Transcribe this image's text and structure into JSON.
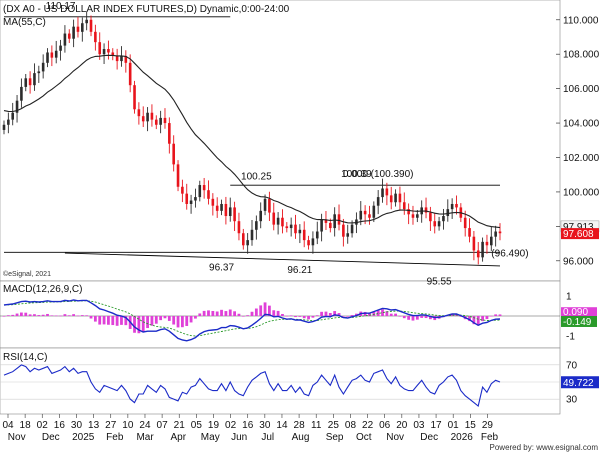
{
  "chart_data": {
    "type": "candlestick",
    "title": "(DX A0 - US DOLLAR INDEX FUTURES,D) Dynamic,0:00-24:00",
    "ma_label": "MA(55,C)",
    "watermark_top": "©eSignal, 2021",
    "footer": "Powered by: www.esignal.com",
    "price_panel": {
      "ylim": [
        95.0,
        110.8
      ],
      "yticks": [
        "110.000",
        "108.000",
        "106.000",
        "104.000",
        "102.000",
        "100.000",
        "98.000",
        "96.000"
      ],
      "tick_values": [
        110,
        108,
        106,
        104,
        102,
        100,
        98,
        96
      ],
      "last_price_label": "97.608",
      "last_price": 97.608,
      "last_ma_label": "97.913",
      "last_ma": 97.913,
      "annotations": [
        {
          "text": "110.17",
          "date_index": 13,
          "value": 110.17,
          "pos": "above"
        },
        {
          "text": "100.25",
          "date_index": 58,
          "value": 100.25,
          "pos": "above"
        },
        {
          "text": "100.39",
          "date_index": 81,
          "value": 100.39,
          "pos": "above"
        },
        {
          "text": "0.000 (100.390)",
          "date_index": 86,
          "value": 100.39,
          "pos": "above"
        },
        {
          "text": "96.37",
          "date_index": 50,
          "value": 96.37,
          "pos": "below"
        },
        {
          "text": "96.21",
          "date_index": 68,
          "value": 96.21,
          "pos": "below"
        },
        {
          "text": "95.55",
          "date_index": 100,
          "value": 95.55,
          "pos": "below"
        },
        {
          "text": "(96.490)",
          "date_index": 112,
          "value": 96.49,
          "pos": "inline"
        }
      ],
      "lines": [
        {
          "name": "top-resistance",
          "from": [
            0,
            110.17
          ],
          "to": [
            52,
            110.17
          ]
        },
        {
          "name": "range-top",
          "from": [
            52,
            100.39
          ],
          "to": [
            114,
            100.39
          ]
        },
        {
          "name": "support-line",
          "from": [
            14,
            96.45
          ],
          "to": [
            114,
            95.7
          ]
        },
        {
          "name": "fib-line",
          "from": [
            0,
            96.49
          ],
          "to": [
            114,
            96.49
          ]
        }
      ]
    },
    "macd_panel": {
      "label": "MACD(12,26,9,C)",
      "ylim": [
        -1.5,
        1.5
      ],
      "yticks": [
        "1",
        "-1"
      ],
      "tick_values": [
        1,
        -1
      ],
      "last_label": "-0.149",
      "last_value": -0.149,
      "last_signal_label": "0.090",
      "last_signal": 0.09
    },
    "rsi_panel": {
      "label": "RSI(14,C)",
      "ylim": [
        15,
        85
      ],
      "yticks": [
        "70",
        "50",
        "30"
      ],
      "tick_values": [
        70,
        50,
        30
      ],
      "last_label": "49.722",
      "last_value": 49.722
    },
    "x_axis": {
      "ticks": [
        {
          "label": "04",
          "i": 0
        },
        {
          "label": "18",
          "i": 4
        },
        {
          "label": "02",
          "i": 8
        },
        {
          "label": "16",
          "i": 12
        },
        {
          "label": "30",
          "i": 16
        },
        {
          "label": "13",
          "i": 20
        },
        {
          "label": "27",
          "i": 24
        },
        {
          "label": "10",
          "i": 28
        },
        {
          "label": "24",
          "i": 32
        },
        {
          "label": "07",
          "i": 36
        },
        {
          "label": "21",
          "i": 40
        },
        {
          "label": "05",
          "i": 44
        },
        {
          "label": "19",
          "i": 48
        },
        {
          "label": "02",
          "i": 52
        },
        {
          "label": "16",
          "i": 56
        },
        {
          "label": "30",
          "i": 60
        },
        {
          "label": "14",
          "i": 64
        },
        {
          "label": "28",
          "i": 68
        },
        {
          "label": "11",
          "i": 72
        },
        {
          "label": "25",
          "i": 76
        },
        {
          "label": "08",
          "i": 80
        },
        {
          "label": "22",
          "i": 84
        },
        {
          "label": "06",
          "i": 88
        },
        {
          "label": "20",
          "i": 92
        },
        {
          "label": "03",
          "i": 96
        },
        {
          "label": "17",
          "i": 100
        },
        {
          "label": "01",
          "i": 104
        },
        {
          "label": "15",
          "i": 108
        },
        {
          "label": "29",
          "i": 112
        }
      ],
      "months": [
        {
          "label": "Nov",
          "i": 1
        },
        {
          "label": "Dec",
          "i": 10
        },
        {
          "label": "2025",
          "i": 18
        },
        {
          "label": "Feb",
          "i": 27
        },
        {
          "label": "Mar",
          "i": 35
        },
        {
          "label": "Apr",
          "i": 44
        },
        {
          "label": "May",
          "i": 52
        },
        {
          "label": "Jun",
          "i": 60
        },
        {
          "label": "Jul",
          "i": 68
        },
        {
          "label": "Aug",
          "i": 76
        },
        {
          "label": "Sep",
          "i": 85
        },
        {
          "label": "Oct",
          "i": 93
        },
        {
          "label": "Nov",
          "i": 101
        },
        {
          "label": "Dec",
          "i": 110
        },
        {
          "label": "2026",
          "i": 118
        },
        {
          "label": "Feb",
          "i": 126
        }
      ]
    },
    "closes": [
      103.9,
      104.2,
      104.6,
      105.3,
      106.1,
      106.6,
      106.2,
      106.9,
      107.0,
      107.5,
      108.1,
      107.8,
      108.2,
      108.5,
      109.2,
      108.9,
      109.6,
      109.3,
      109.8,
      110.0,
      109.3,
      108.7,
      108.0,
      108.3,
      108.1,
      107.9,
      107.6,
      107.9,
      107.5,
      106.2,
      104.8,
      104.4,
      104.1,
      104.6,
      104.2,
      103.9,
      104.3,
      104.0,
      102.8,
      101.6,
      100.3,
      99.9,
      99.3,
      99.5,
      99.7,
      100.4,
      100.1,
      99.6,
      99.2,
      98.9,
      99.3,
      98.6,
      99.1,
      98.3,
      97.6,
      96.9,
      97.2,
      97.8,
      98.3,
      98.9,
      99.6,
      98.8,
      98.1,
      98.5,
      98.0,
      97.9,
      98.1,
      97.6,
      97.8,
      97.2,
      96.9,
      97.3,
      97.7,
      98.4,
      98.2,
      97.9,
      98.7,
      98.1,
      97.4,
      97.6,
      98.1,
      98.4,
      98.9,
      98.7,
      98.5,
      99.2,
      99.7,
      100.2,
      99.8,
      99.4,
      99.9,
      99.4,
      99.0,
      98.7,
      98.5,
      98.7,
      99.1,
      98.8,
      98.3,
      98.0,
      98.3,
      98.6,
      99.0,
      99.3,
      99.1,
      98.5,
      97.9,
      97.4,
      96.6,
      96.2,
      97.1,
      96.9,
      97.4,
      97.7,
      97.6
    ],
    "macd_values": [
      0.55,
      0.58,
      0.6,
      0.66,
      0.72,
      0.74,
      0.7,
      0.72,
      0.7,
      0.72,
      0.76,
      0.72,
      0.72,
      0.72,
      0.78,
      0.75,
      0.8,
      0.76,
      0.78,
      0.78,
      0.66,
      0.52,
      0.36,
      0.3,
      0.22,
      0.14,
      0.04,
      0.0,
      -0.08,
      -0.3,
      -0.55,
      -0.7,
      -0.8,
      -0.76,
      -0.76,
      -0.76,
      -0.68,
      -0.64,
      -0.76,
      -0.94,
      -1.12,
      -1.2,
      -1.24,
      -1.18,
      -1.08,
      -0.9,
      -0.78,
      -0.72,
      -0.7,
      -0.68,
      -0.58,
      -0.58,
      -0.48,
      -0.5,
      -0.56,
      -0.64,
      -0.6,
      -0.46,
      -0.3,
      -0.12,
      0.08,
      0.06,
      -0.04,
      -0.02,
      -0.1,
      -0.16,
      -0.14,
      -0.2,
      -0.2,
      -0.26,
      -0.32,
      -0.28,
      -0.2,
      -0.06,
      -0.02,
      -0.04,
      0.06,
      0.02,
      -0.08,
      -0.1,
      -0.04,
      0.02,
      0.12,
      0.14,
      0.14,
      0.22,
      0.3,
      0.38,
      0.36,
      0.3,
      0.32,
      0.24,
      0.16,
      0.08,
      0.02,
      0.02,
      0.06,
      0.04,
      -0.02,
      -0.08,
      -0.06,
      -0.02,
      0.04,
      0.1,
      0.1,
      0.02,
      -0.08,
      -0.18,
      -0.34,
      -0.46,
      -0.36,
      -0.32,
      -0.22,
      -0.16,
      -0.15
    ],
    "rsi_values": [
      58,
      60,
      62,
      66,
      70,
      68,
      62,
      66,
      64,
      66,
      68,
      60,
      62,
      64,
      68,
      62,
      66,
      60,
      62,
      62,
      50,
      42,
      38,
      46,
      44,
      42,
      40,
      46,
      40,
      30,
      26,
      36,
      36,
      46,
      42,
      38,
      46,
      42,
      32,
      30,
      28,
      38,
      36,
      44,
      46,
      54,
      48,
      42,
      40,
      40,
      48,
      40,
      50,
      40,
      36,
      34,
      44,
      52,
      56,
      60,
      62,
      48,
      40,
      48,
      40,
      40,
      46,
      38,
      44,
      36,
      34,
      46,
      50,
      58,
      52,
      46,
      58,
      44,
      36,
      44,
      52,
      54,
      58,
      52,
      50,
      60,
      62,
      64,
      54,
      48,
      56,
      46,
      42,
      40,
      40,
      46,
      52,
      44,
      38,
      36,
      46,
      50,
      56,
      58,
      52,
      40,
      34,
      30,
      26,
      22,
      44,
      38,
      48,
      52,
      50
    ]
  }
}
